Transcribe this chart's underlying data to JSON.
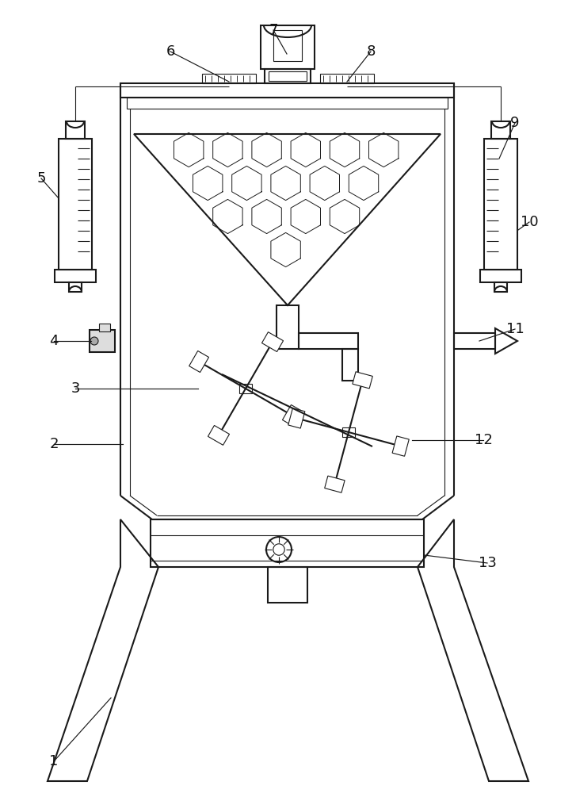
{
  "bg_color": "#ffffff",
  "line_color": "#1a1a1a",
  "lw_main": 1.5,
  "lw_thin": 0.8,
  "fig_w": 7.27,
  "fig_h": 10.0,
  "dpi": 100,
  "labels": [
    "1",
    "2",
    "3",
    "4",
    "5",
    "6",
    "7",
    "8",
    "9",
    "10",
    "11",
    "12",
    "13"
  ]
}
